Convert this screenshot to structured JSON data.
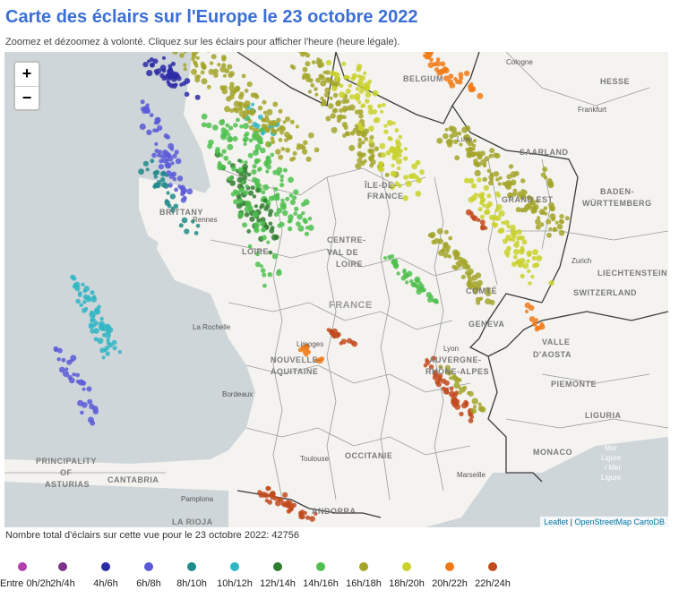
{
  "header": {
    "title": "Carte des éclairs sur l'Europe le 23 octobre 2022",
    "subtitle": "Zoomez et dézoomez à volonté. Cliquez sur les éclairs pour afficher l'heure (heure légale)."
  },
  "map": {
    "zoom_in": "+",
    "zoom_out": "−",
    "attribution": {
      "leaflet": "Leaflet",
      "sep": " | ",
      "osm": "OpenStreetMap",
      "carto": " CartoDB"
    },
    "colors": {
      "sea": "#cfd6da",
      "land": "#f4f3ef",
      "border": "#3a3a3a",
      "dept": "#bdbdbd"
    },
    "labels": [
      {
        "id": "belgium",
        "text": "BELGIUM"
      },
      {
        "id": "cologne",
        "text": "Cologne"
      },
      {
        "id": "hesse",
        "text": "HESSE"
      },
      {
        "id": "frankfurt",
        "text": "Frankfurt"
      },
      {
        "id": "luxe",
        "text": "Luxe"
      },
      {
        "id": "saarland",
        "text": "SAARLAND"
      },
      {
        "id": "baden",
        "text": "BADEN-"
      },
      {
        "id": "wurttemberg",
        "text": "WÜRTTEMBERG"
      },
      {
        "id": "brittany",
        "text": "BRITTANY"
      },
      {
        "id": "rennes",
        "text": "Rennes"
      },
      {
        "id": "iledefrance",
        "text": "ÎLE-DE-"
      },
      {
        "id": "iledefrance2",
        "text": "FRANCE"
      },
      {
        "id": "grandest",
        "text": "GRAND EST"
      },
      {
        "id": "centre",
        "text": "CENTRE-"
      },
      {
        "id": "valde",
        "text": "VAL DE"
      },
      {
        "id": "loire",
        "text": "LOIRE"
      },
      {
        "id": "loire2",
        "text": "LOIRE"
      },
      {
        "id": "zurich",
        "text": "Zurich"
      },
      {
        "id": "liechtenstein",
        "text": "LIECHTENSTEIN"
      },
      {
        "id": "switzerland",
        "text": "SWITZERLAND"
      },
      {
        "id": "france",
        "text": "FRANCE"
      },
      {
        "id": "comte",
        "text": "COMTÉ"
      },
      {
        "id": "larochelle",
        "text": "La Rochelle"
      },
      {
        "id": "limoges",
        "text": "Limoges"
      },
      {
        "id": "geneva",
        "text": "GENEVA"
      },
      {
        "id": "lyon",
        "text": "Lyon"
      },
      {
        "id": "valle",
        "text": "VALLE"
      },
      {
        "id": "daosta",
        "text": "D'AOSTA"
      },
      {
        "id": "nouvelle",
        "text": "NOUVELLE-"
      },
      {
        "id": "aquitaine",
        "text": "AQUITAINE"
      },
      {
        "id": "auvergne",
        "text": "AUVERGNE-"
      },
      {
        "id": "rhonealpes",
        "text": "RHÔNE-ALPES"
      },
      {
        "id": "piemonte",
        "text": "PIEMONTE"
      },
      {
        "id": "bordeaux",
        "text": "Bordeaux"
      },
      {
        "id": "liguria",
        "text": "LIGURIA"
      },
      {
        "id": "monaco",
        "text": "MONACO"
      },
      {
        "id": "toulouse",
        "text": "Toulouse"
      },
      {
        "id": "occitanie",
        "text": "OCCITANIE"
      },
      {
        "id": "marseille",
        "text": "Marseille"
      },
      {
        "id": "principality",
        "text": "PRINCIPALITY"
      },
      {
        "id": "of",
        "text": "OF"
      },
      {
        "id": "asturias",
        "text": "ASTURIAS"
      },
      {
        "id": "cantabria",
        "text": "CANTABRIA"
      },
      {
        "id": "pamplona",
        "text": "Pamplona"
      },
      {
        "id": "larioja",
        "text": "LA RIOJA"
      },
      {
        "id": "andorra",
        "text": "ANDORRA"
      },
      {
        "id": "mar",
        "text": "Mar"
      },
      {
        "id": "ligure",
        "text": "Ligure"
      },
      {
        "id": "marligure2",
        "text": "/ Mer"
      },
      {
        "id": "ligure3",
        "text": "Ligure"
      }
    ]
  },
  "footer": {
    "total_text": "Nombre total d'éclairs sur cette vue pour le 23 octobre 2022: 42756"
  },
  "legend": [
    {
      "label": "Entre 0h/2h",
      "color": "#b23fb0"
    },
    {
      "label": "2h/4h",
      "color": "#7c3389"
    },
    {
      "label": "4h/6h",
      "color": "#2a2aa6"
    },
    {
      "label": "6h/8h",
      "color": "#5a5ad8"
    },
    {
      "label": "8h/10h",
      "color": "#1e8a8a"
    },
    {
      "label": "10h/12h",
      "color": "#2fb6c4"
    },
    {
      "label": "12h/14h",
      "color": "#2f7d2f"
    },
    {
      "label": "14h/16h",
      "color": "#4fbf4f"
    },
    {
      "label": "16h/18h",
      "color": "#a3a52a"
    },
    {
      "label": "18h/20h",
      "color": "#c9d12a"
    },
    {
      "label": "20h/22h",
      "color": "#f07a18"
    },
    {
      "label": "22h/24h",
      "color": "#c24a1f"
    }
  ]
}
